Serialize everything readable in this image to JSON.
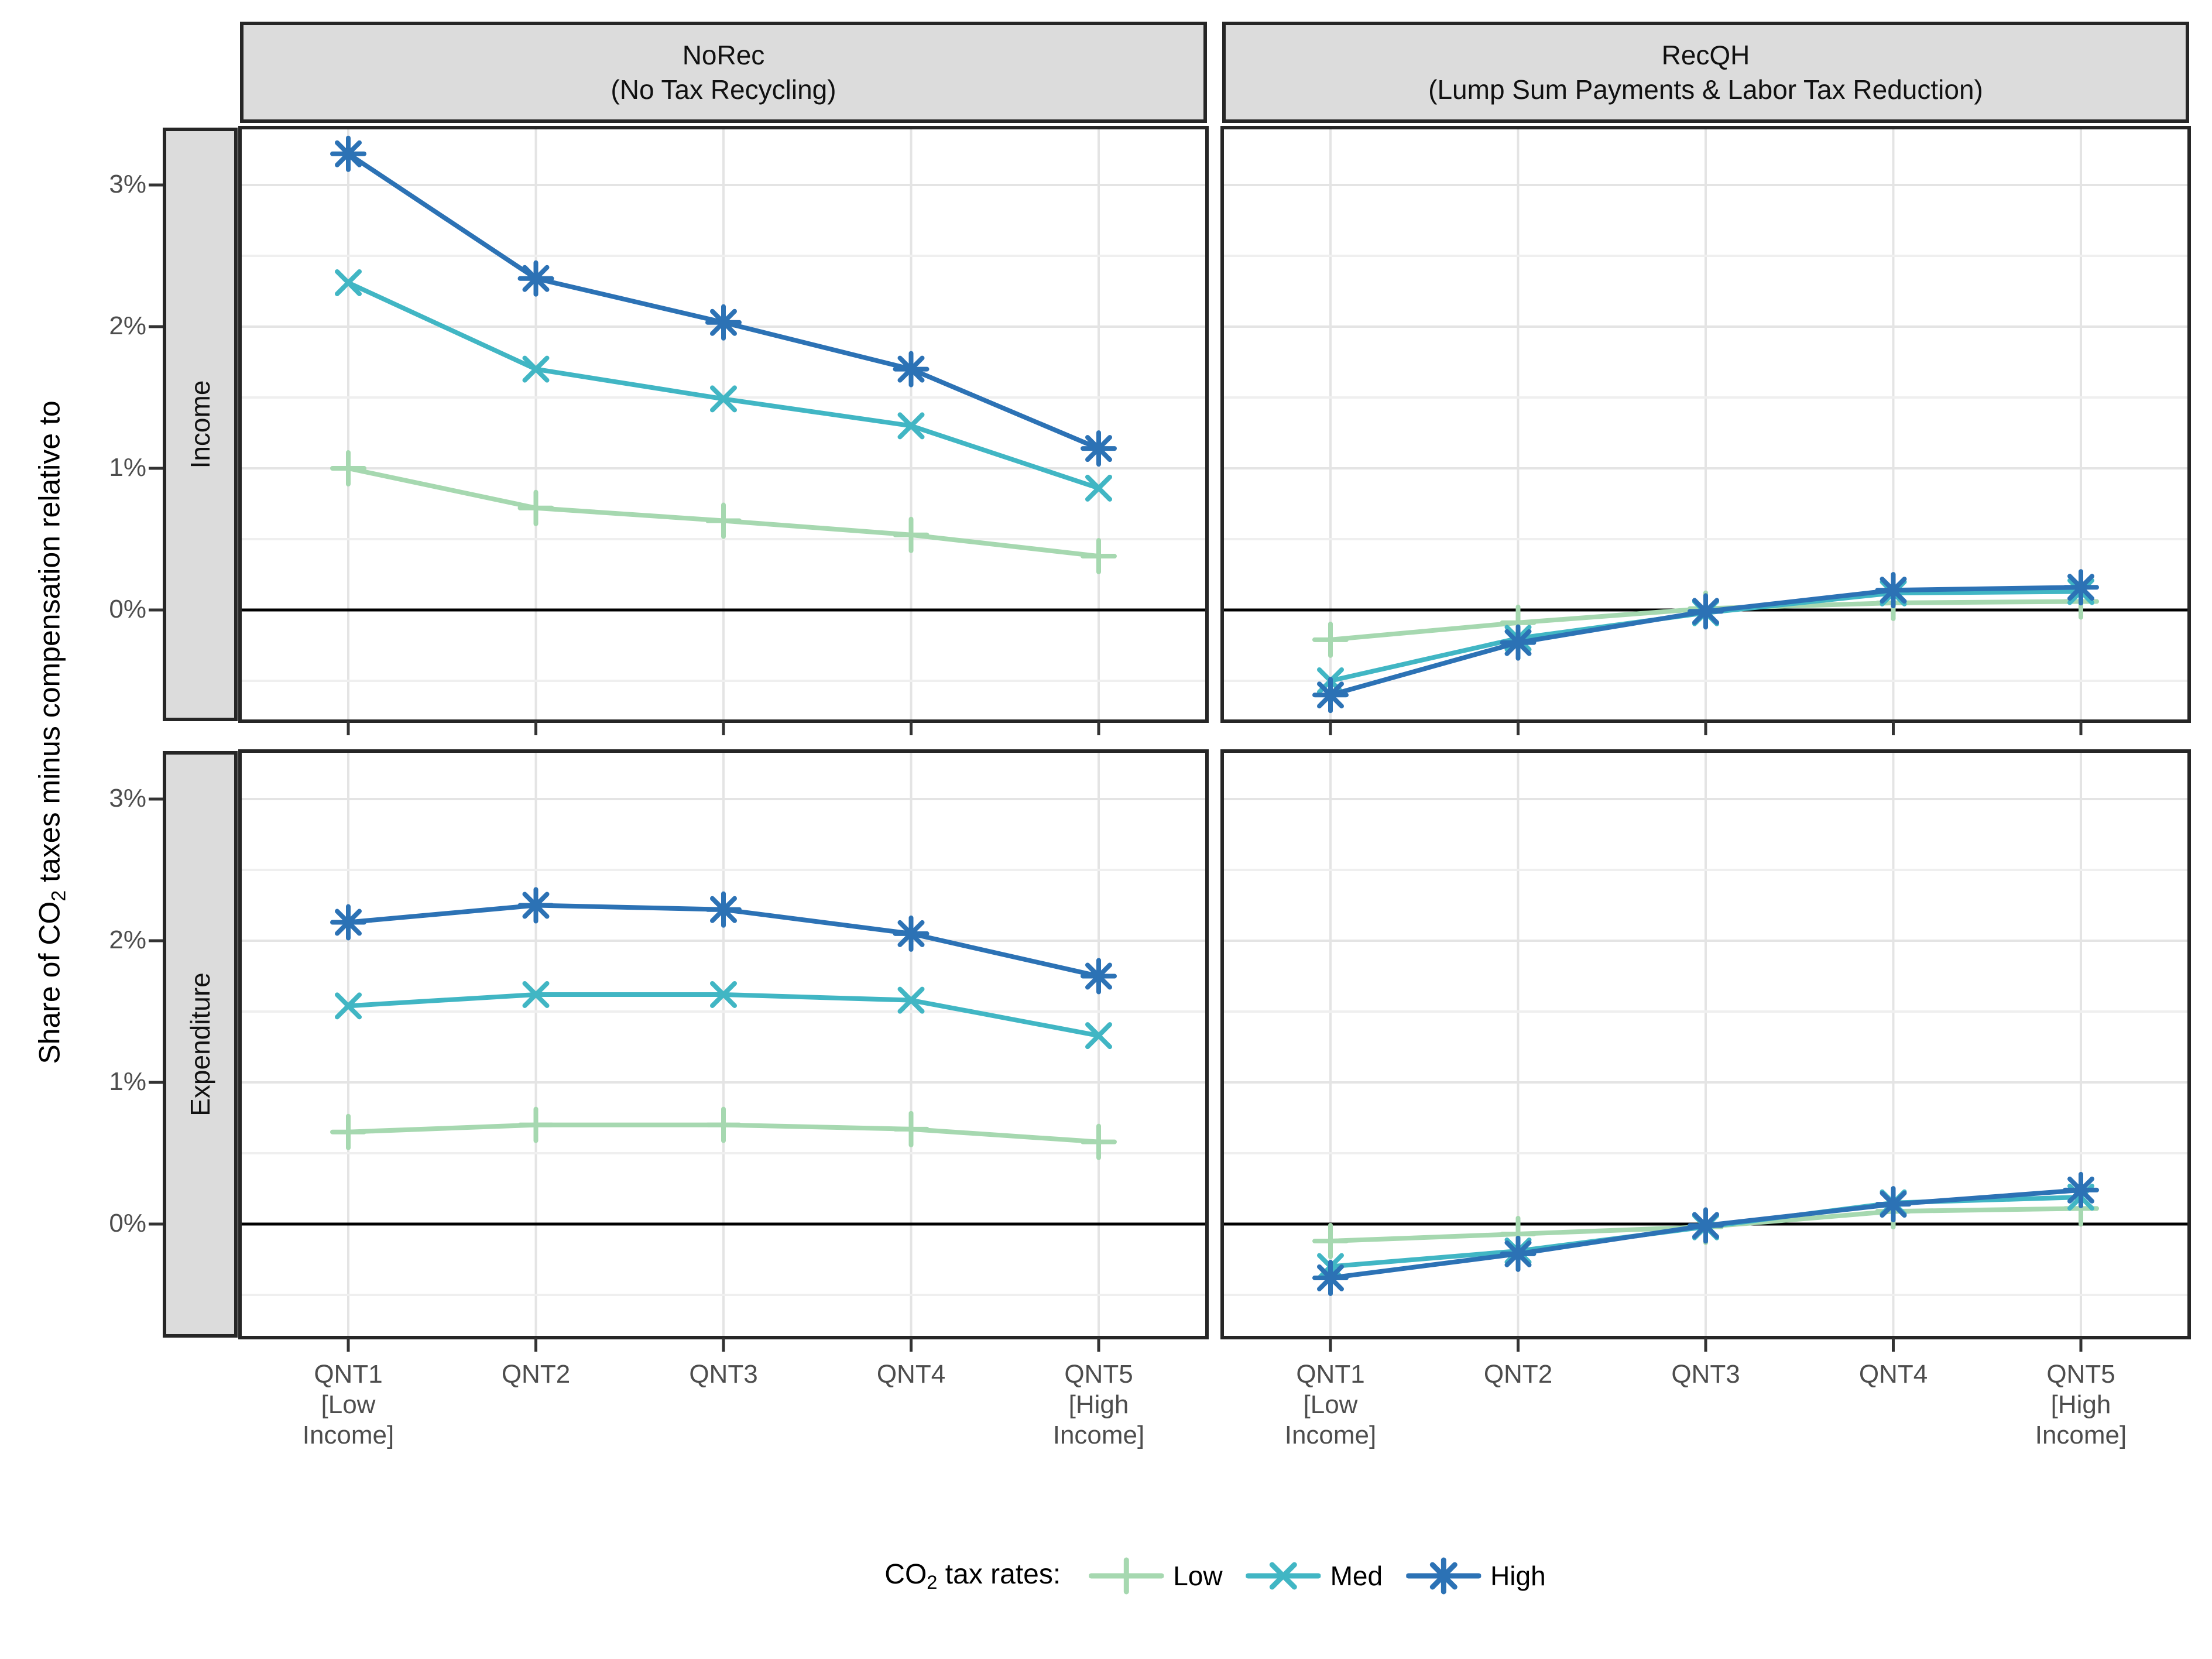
{
  "figure": {
    "y_axis_title": {
      "prefix": "Share of CO",
      "sub": "2",
      "suffix": " taxes minus compensation relative to"
    },
    "legend": {
      "title_prefix": "CO",
      "title_sub": "2",
      "title_suffix": " tax rates:",
      "position": "bottom",
      "items": [
        {
          "label": "Low",
          "marker": "plus",
          "color": "#A6D8B0"
        },
        {
          "label": "Med",
          "marker": "x",
          "color": "#41B6C4"
        },
        {
          "label": "High",
          "marker": "asterisk",
          "color": "#2C72B5"
        }
      ]
    },
    "colors": {
      "strip_fill": "#dcdcdc",
      "panel_border": "#262626",
      "grid_major": "#e4e4e4",
      "grid_minor": "#efefef",
      "zero_line": "#000000",
      "tick_mark": "#333333",
      "tick_text": "#4d4d4d"
    }
  },
  "chart_data": {
    "type": "line",
    "grid": "on",
    "categories": [
      "QNT1\n[Low\nIncome]",
      "QNT2",
      "QNT3",
      "QNT4",
      "QNT5\n[High\nIncome]"
    ],
    "col_facets": [
      {
        "title": "NoRec",
        "subtitle": "(No Tax Recycling)"
      },
      {
        "title": "RecQH",
        "subtitle": "(Lump Sum Payments & Labor Tax Reduction)"
      }
    ],
    "row_facets": [
      {
        "label": "Income"
      },
      {
        "label": "Expenditure"
      }
    ],
    "ylabel": "Share of CO2 taxes minus compensation relative to",
    "y_ticks": [
      {
        "label": "3%",
        "value": 3
      },
      {
        "label": "2%",
        "value": 2
      },
      {
        "label": "1%",
        "value": 1
      },
      {
        "label": "0%",
        "value": 0
      }
    ],
    "ylim": [
      -0.8,
      3.4
    ],
    "y_minor_step": 0.5,
    "panels": [
      {
        "row": 0,
        "col": 0,
        "row_label": "Income",
        "col_label": "NoRec",
        "series": [
          {
            "name": "Low",
            "values": [
              1.0,
              0.72,
              0.63,
              0.53,
              0.38
            ]
          },
          {
            "name": "Med",
            "values": [
              2.31,
              1.7,
              1.49,
              1.3,
              0.86
            ]
          },
          {
            "name": "High",
            "values": [
              3.22,
              2.34,
              2.03,
              1.7,
              1.14
            ]
          }
        ]
      },
      {
        "row": 0,
        "col": 1,
        "row_label": "Income",
        "col_label": "RecQH",
        "series": [
          {
            "name": "Low",
            "values": [
              -0.21,
              -0.09,
              0.01,
              0.05,
              0.06
            ]
          },
          {
            "name": "Med",
            "values": [
              -0.5,
              -0.2,
              -0.02,
              0.12,
              0.13
            ]
          },
          {
            "name": "High",
            "values": [
              -0.6,
              -0.23,
              -0.01,
              0.14,
              0.16
            ]
          }
        ]
      },
      {
        "row": 1,
        "col": 0,
        "row_label": "Expenditure",
        "col_label": "NoRec",
        "series": [
          {
            "name": "Low",
            "values": [
              0.65,
              0.7,
              0.7,
              0.67,
              0.58
            ]
          },
          {
            "name": "Med",
            "values": [
              1.54,
              1.62,
              1.62,
              1.58,
              1.33
            ]
          },
          {
            "name": "High",
            "values": [
              2.13,
              2.25,
              2.22,
              2.05,
              1.75
            ]
          }
        ]
      },
      {
        "row": 1,
        "col": 1,
        "row_label": "Expenditure",
        "col_label": "RecQH",
        "series": [
          {
            "name": "Low",
            "values": [
              -0.12,
              -0.07,
              -0.02,
              0.09,
              0.11
            ]
          },
          {
            "name": "Med",
            "values": [
              -0.3,
              -0.19,
              -0.02,
              0.15,
              0.19
            ]
          },
          {
            "name": "High",
            "values": [
              -0.38,
              -0.21,
              -0.01,
              0.14,
              0.24
            ]
          }
        ]
      }
    ]
  }
}
